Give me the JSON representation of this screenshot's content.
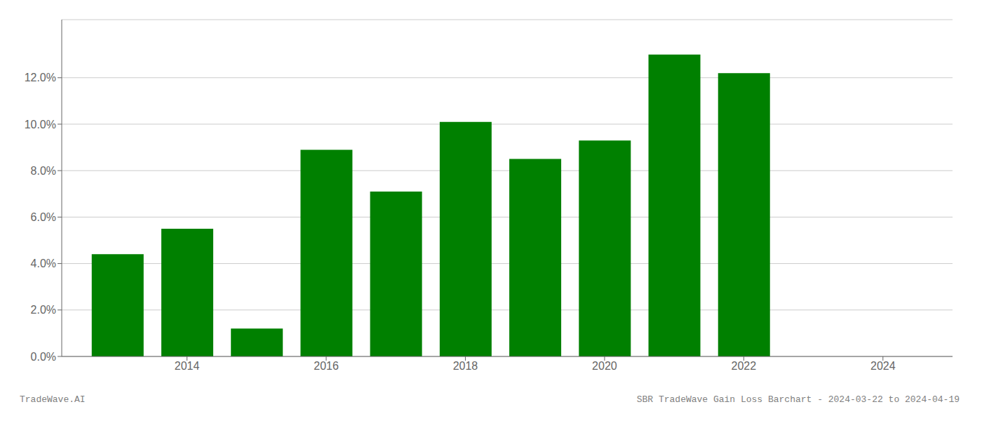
{
  "chart_data": {
    "type": "bar",
    "x": [
      2013,
      2014,
      2015,
      2016,
      2017,
      2018,
      2019,
      2020,
      2021,
      2022
    ],
    "values": [
      0.044,
      0.055,
      0.012,
      0.089,
      0.071,
      0.101,
      0.085,
      0.093,
      0.13,
      0.122
    ],
    "color": "#008000",
    "xlim": [
      2012.2,
      2025.0
    ],
    "xticks": [
      2014,
      2016,
      2018,
      2020,
      2022,
      2024
    ],
    "ylim": [
      0,
      0.145
    ],
    "yticks": [
      {
        "value": 0.0,
        "label": "0.0%"
      },
      {
        "value": 0.02,
        "label": "2.0%"
      },
      {
        "value": 0.04,
        "label": "4.0%"
      },
      {
        "value": 0.06,
        "label": "6.0%"
      },
      {
        "value": 0.08,
        "label": "8.0%"
      },
      {
        "value": 0.1,
        "label": "10.0%"
      },
      {
        "value": 0.12,
        "label": "12.0%"
      }
    ],
    "grid": true,
    "annotations": [
      "TradeWave.AI",
      "SBR TradeWave Gain Loss Barchart - 2024-03-22 to 2024-04-19"
    ]
  }
}
